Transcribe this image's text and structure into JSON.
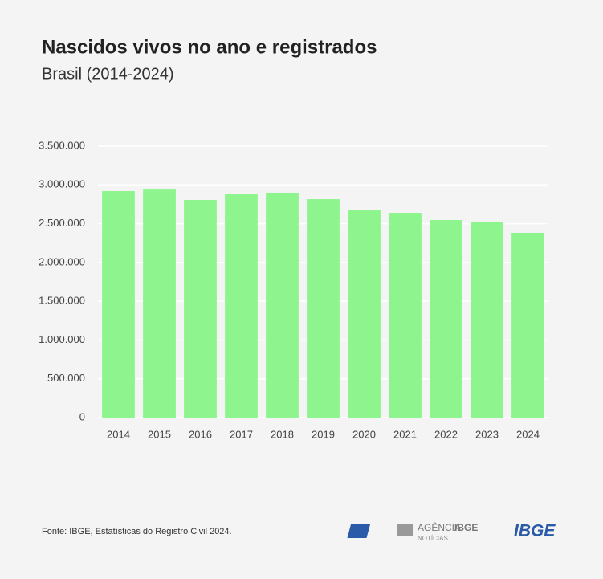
{
  "chart_data": {
    "type": "bar",
    "title": "Nascidos vivos no ano e registrados",
    "subtitle": "Brasil (2014-2024)",
    "categories": [
      "2014",
      "2015",
      "2016",
      "2017",
      "2018",
      "2019",
      "2020",
      "2021",
      "2022",
      "2023",
      "2024"
    ],
    "values": [
      2920000,
      2950000,
      2806000,
      2879000,
      2900000,
      2816000,
      2682000,
      2640000,
      2547000,
      2527000,
      2382000
    ],
    "color": "#8ef58e",
    "ylim": [
      0,
      3500000
    ],
    "yticks": [
      0,
      {
        "value": 500000,
        "label": "500.000"
      },
      {
        "value": 1000000,
        "label": "1.000.000"
      },
      {
        "value": 1500000,
        "label": "1.500.000"
      },
      {
        "value": 2000000,
        "label": "2.000.000"
      },
      {
        "value": 2500000,
        "label": "2.500.000"
      },
      {
        "value": 3000000,
        "label": "3.000.000"
      },
      {
        "value": 3500000,
        "label": "3.500.000"
      }
    ],
    "grid": true
  },
  "footer": {
    "source": "Fonte: IBGE, Estatísticas do Registro Civil 2024.",
    "agency": "AGÊNCIA",
    "agency_brand": "IBGE",
    "agency_sub": "NOTÍCIAS",
    "logo": "IBGE"
  }
}
